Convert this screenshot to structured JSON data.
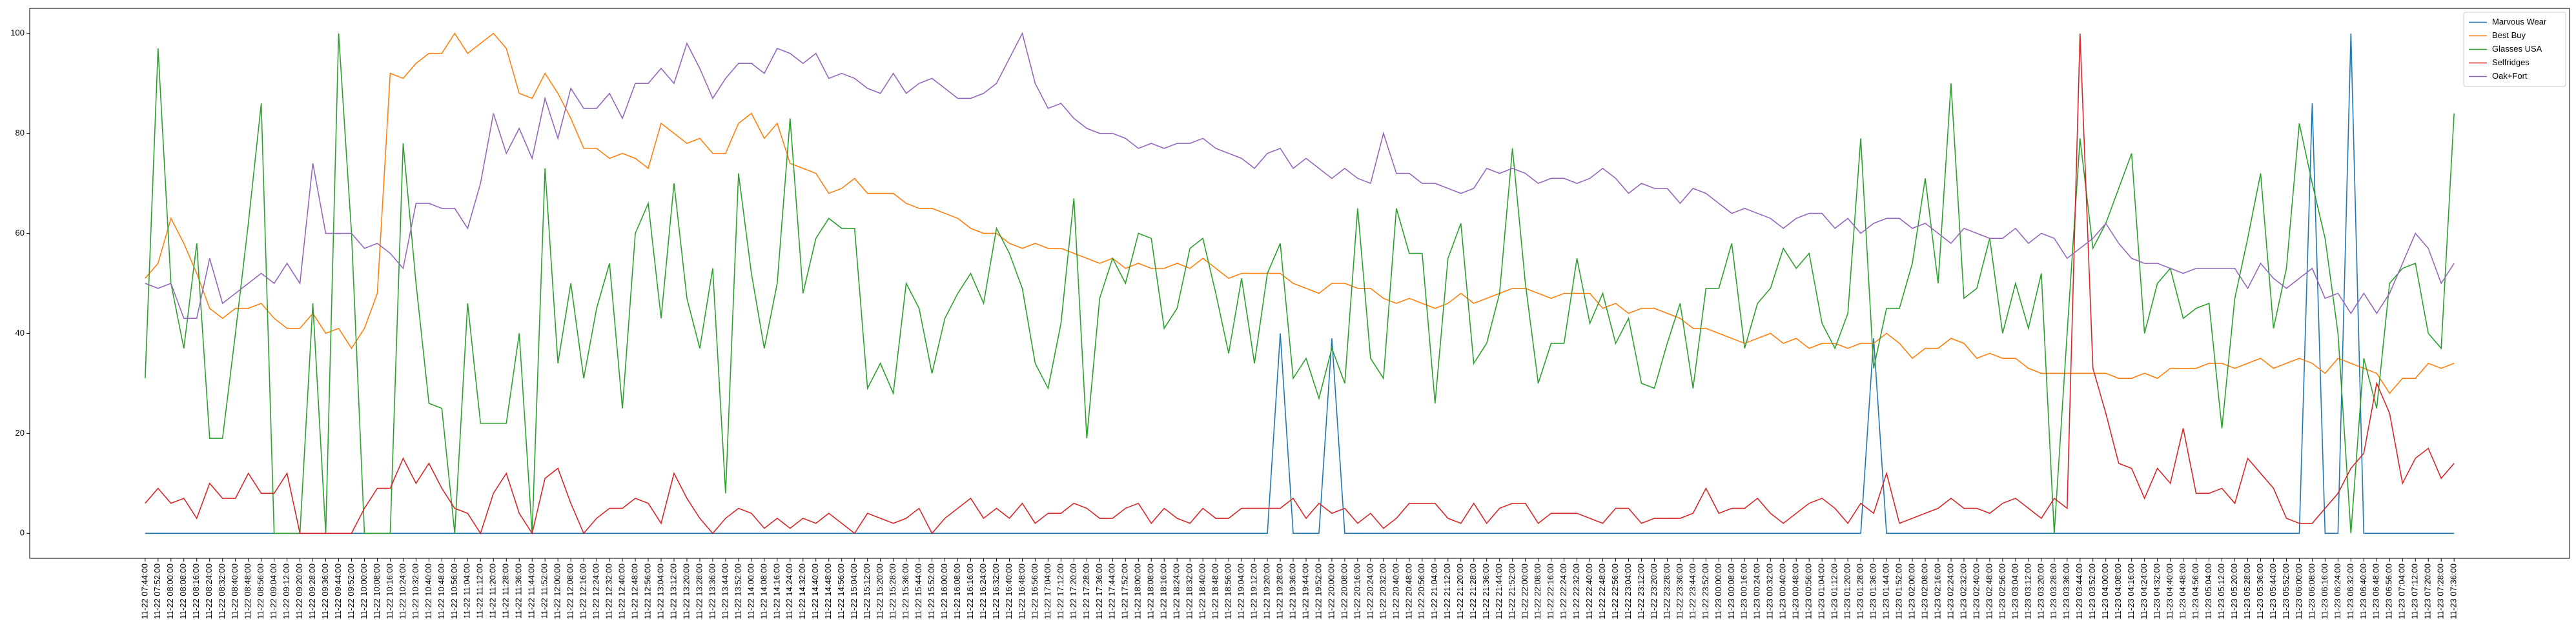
{
  "chart_data": {
    "type": "line",
    "categories": [
      "11-22 07:44:00",
      "11-22 07:52:00",
      "11-22 08:00:00",
      "11-22 08:08:00",
      "11-22 08:16:00",
      "11-22 08:24:00",
      "11-22 08:32:00",
      "11-22 08:40:00",
      "11-22 08:48:00",
      "11-22 08:56:00",
      "11-22 09:04:00",
      "11-22 09:12:00",
      "11-22 09:20:00",
      "11-22 09:28:00",
      "11-22 09:36:00",
      "11-22 09:44:00",
      "11-22 09:52:00",
      "11-22 10:00:00",
      "11-22 10:08:00",
      "11-22 10:16:00",
      "11-22 10:24:00",
      "11-22 10:32:00",
      "11-22 10:40:00",
      "11-22 10:48:00",
      "11-22 10:56:00",
      "11-22 11:04:00",
      "11-22 11:12:00",
      "11-22 11:20:00",
      "11-22 11:28:00",
      "11-22 11:36:00",
      "11-22 11:44:00",
      "11-22 11:52:00",
      "11-22 12:00:00",
      "11-22 12:08:00",
      "11-22 12:16:00",
      "11-22 12:24:00",
      "11-22 12:32:00",
      "11-22 12:40:00",
      "11-22 12:48:00",
      "11-22 12:56:00",
      "11-22 13:04:00",
      "11-22 13:12:00",
      "11-22 13:20:00",
      "11-22 13:28:00",
      "11-22 13:36:00",
      "11-22 13:44:00",
      "11-22 13:52:00",
      "11-22 14:00:00",
      "11-22 14:08:00",
      "11-22 14:16:00",
      "11-22 14:24:00",
      "11-22 14:32:00",
      "11-22 14:40:00",
      "11-22 14:48:00",
      "11-22 14:56:00",
      "11-22 15:04:00",
      "11-22 15:12:00",
      "11-22 15:20:00",
      "11-22 15:28:00",
      "11-22 15:36:00",
      "11-22 15:44:00",
      "11-22 15:52:00",
      "11-22 16:00:00",
      "11-22 16:08:00",
      "11-22 16:16:00",
      "11-22 16:24:00",
      "11-22 16:32:00",
      "11-22 16:40:00",
      "11-22 16:48:00",
      "11-22 16:56:00",
      "11-22 17:04:00",
      "11-22 17:12:00",
      "11-22 17:20:00",
      "11-22 17:28:00",
      "11-22 17:36:00",
      "11-22 17:44:00",
      "11-22 17:52:00",
      "11-22 18:00:00",
      "11-22 18:08:00",
      "11-22 18:16:00",
      "11-22 18:24:00",
      "11-22 18:32:00",
      "11-22 18:40:00",
      "11-22 18:48:00",
      "11-22 18:56:00",
      "11-22 19:04:00",
      "11-22 19:12:00",
      "11-22 19:20:00",
      "11-22 19:28:00",
      "11-22 19:36:00",
      "11-22 19:44:00",
      "11-22 19:52:00",
      "11-22 20:00:00",
      "11-22 20:08:00",
      "11-22 20:16:00",
      "11-22 20:24:00",
      "11-22 20:32:00",
      "11-22 20:40:00",
      "11-22 20:48:00",
      "11-22 20:56:00",
      "11-22 21:04:00",
      "11-22 21:12:00",
      "11-22 21:20:00",
      "11-22 21:28:00",
      "11-22 21:36:00",
      "11-22 21:44:00",
      "11-22 21:52:00",
      "11-22 22:00:00",
      "11-22 22:08:00",
      "11-22 22:16:00",
      "11-22 22:24:00",
      "11-22 22:32:00",
      "11-22 22:40:00",
      "11-22 22:48:00",
      "11-22 22:56:00",
      "11-22 23:04:00",
      "11-22 23:12:00",
      "11-22 23:20:00",
      "11-22 23:28:00",
      "11-22 23:36:00",
      "11-22 23:44:00",
      "11-22 23:52:00",
      "11-23 00:00:00",
      "11-23 00:08:00",
      "11-23 00:16:00",
      "11-23 00:24:00",
      "11-23 00:32:00",
      "11-23 00:40:00",
      "11-23 00:48:00",
      "11-23 00:56:00",
      "11-23 01:04:00",
      "11-23 01:12:00",
      "11-23 01:20:00",
      "11-23 01:28:00",
      "11-23 01:36:00",
      "11-23 01:44:00",
      "11-23 01:52:00",
      "11-23 02:00:00",
      "11-23 02:08:00",
      "11-23 02:16:00",
      "11-23 02:24:00",
      "11-23 02:32:00",
      "11-23 02:40:00",
      "11-23 02:48:00",
      "11-23 02:56:00",
      "11-23 03:04:00",
      "11-23 03:12:00",
      "11-23 03:20:00",
      "11-23 03:28:00",
      "11-23 03:36:00",
      "11-23 03:44:00",
      "11-23 03:52:00",
      "11-23 04:00:00",
      "11-23 04:08:00",
      "11-23 04:16:00",
      "11-23 04:24:00",
      "11-23 04:32:00",
      "11-23 04:40:00",
      "11-23 04:48:00",
      "11-23 04:56:00",
      "11-23 05:04:00",
      "11-23 05:12:00",
      "11-23 05:20:00",
      "11-23 05:28:00",
      "11-23 05:36:00",
      "11-23 05:44:00",
      "11-23 05:52:00",
      "11-23 06:00:00",
      "11-23 06:08:00",
      "11-23 06:16:00",
      "11-23 06:24:00",
      "11-23 06:32:00",
      "11-23 06:40:00",
      "11-23 06:48:00",
      "11-23 06:56:00",
      "11-23 07:04:00",
      "11-23 07:12:00",
      "11-23 07:20:00",
      "11-23 07:28:00",
      "11-23 07:36:00"
    ],
    "series": [
      {
        "name": "Marvous Wear",
        "color": "#1f77b4",
        "values": [
          0,
          0,
          0,
          0,
          0,
          0,
          0,
          0,
          0,
          0,
          0,
          0,
          0,
          0,
          0,
          0,
          0,
          0,
          0,
          0,
          0,
          0,
          0,
          0,
          0,
          0,
          0,
          0,
          0,
          0,
          0,
          0,
          0,
          0,
          0,
          0,
          0,
          0,
          0,
          0,
          0,
          0,
          0,
          0,
          0,
          0,
          0,
          0,
          0,
          0,
          0,
          0,
          0,
          0,
          0,
          0,
          0,
          0,
          0,
          0,
          0,
          0,
          0,
          0,
          0,
          0,
          0,
          0,
          0,
          0,
          0,
          0,
          0,
          0,
          0,
          0,
          0,
          0,
          0,
          0,
          0,
          0,
          0,
          0,
          0,
          0,
          0,
          0,
          40,
          0,
          0,
          0,
          39,
          0,
          0,
          0,
          0,
          0,
          0,
          0,
          0,
          0,
          0,
          0,
          0,
          0,
          0,
          0,
          0,
          0,
          0,
          0,
          0,
          0,
          0,
          0,
          0,
          0,
          0,
          0,
          0,
          0,
          0,
          0,
          0,
          0,
          0,
          0,
          0,
          0,
          0,
          0,
          0,
          0,
          39,
          0,
          0,
          0,
          0,
          0,
          0,
          0,
          0,
          0,
          0,
          0,
          0,
          0,
          0,
          0,
          0,
          0,
          0,
          0,
          0,
          0,
          0,
          0,
          0,
          0,
          0,
          0,
          0,
          0,
          0,
          0,
          0,
          0,
          86,
          0,
          0,
          100,
          0,
          0,
          0,
          0,
          0,
          0,
          0,
          0
        ]
      },
      {
        "name": "Best Buy",
        "color": "#ff7f0e",
        "values": [
          51,
          54,
          63,
          58,
          52,
          45,
          43,
          45,
          45,
          46,
          43,
          41,
          41,
          44,
          40,
          41,
          37,
          41,
          48,
          92,
          91,
          94,
          96,
          96,
          100,
          96,
          98,
          100,
          97,
          88,
          87,
          92,
          88,
          83,
          77,
          77,
          75,
          76,
          75,
          73,
          82,
          80,
          78,
          79,
          76,
          76,
          82,
          84,
          79,
          82,
          74,
          73,
          72,
          68,
          69,
          71,
          68,
          68,
          68,
          66,
          65,
          65,
          64,
          63,
          61,
          60,
          60,
          58,
          57,
          58,
          57,
          57,
          56,
          55,
          54,
          55,
          53,
          54,
          53,
          53,
          54,
          53,
          55,
          53,
          51,
          52,
          52,
          52,
          52,
          50,
          49,
          48,
          50,
          50,
          49,
          49,
          47,
          46,
          47,
          46,
          45,
          46,
          48,
          46,
          47,
          48,
          49,
          49,
          48,
          47,
          48,
          48,
          48,
          45,
          46,
          44,
          45,
          45,
          44,
          43,
          41,
          41,
          40,
          39,
          38,
          39,
          40,
          38,
          39,
          37,
          38,
          38,
          37,
          38,
          38,
          40,
          38,
          35,
          37,
          37,
          39,
          38,
          35,
          36,
          35,
          35,
          33,
          32,
          32,
          32,
          32,
          32,
          32,
          31,
          31,
          32,
          31,
          33,
          33,
          33,
          34,
          34,
          33,
          34,
          35,
          33,
          34,
          35,
          34,
          32,
          35,
          34,
          33,
          32,
          28,
          31,
          31,
          34,
          33,
          34
        ]
      },
      {
        "name": "Glasses USA",
        "color": "#2ca02c",
        "values": [
          31,
          97,
          50,
          37,
          58,
          19,
          19,
          40,
          62,
          86,
          0,
          0,
          0,
          46,
          0,
          100,
          60,
          0,
          0,
          0,
          78,
          50,
          26,
          25,
          0,
          46,
          22,
          22,
          22,
          40,
          0,
          73,
          34,
          50,
          31,
          45,
          54,
          25,
          60,
          66,
          43,
          70,
          47,
          37,
          53,
          8,
          72,
          52,
          37,
          50,
          83,
          48,
          59,
          63,
          61,
          61,
          29,
          34,
          28,
          50,
          45,
          32,
          43,
          48,
          52,
          46,
          61,
          56,
          49,
          34,
          29,
          42,
          67,
          19,
          47,
          55,
          50,
          60,
          59,
          41,
          45,
          57,
          59,
          48,
          36,
          51,
          34,
          52,
          58,
          31,
          35,
          27,
          37,
          30,
          65,
          35,
          31,
          65,
          56,
          56,
          26,
          55,
          62,
          34,
          38,
          48,
          77,
          50,
          30,
          38,
          38,
          55,
          42,
          48,
          38,
          43,
          30,
          29,
          38,
          46,
          29,
          49,
          49,
          58,
          37,
          46,
          49,
          57,
          53,
          56,
          42,
          37,
          44,
          79,
          33,
          45,
          45,
          54,
          71,
          50,
          90,
          47,
          49,
          59,
          40,
          50,
          41,
          52,
          0,
          40,
          79,
          57,
          62,
          69,
          76,
          40,
          50,
          53,
          43,
          45,
          46,
          21,
          47,
          59,
          72,
          41,
          53,
          82,
          70,
          59,
          40,
          0,
          35,
          25,
          50,
          53,
          54,
          40,
          37,
          84
        ]
      },
      {
        "name": "Selfridges",
        "color": "#d62728",
        "values": [
          6,
          9,
          6,
          7,
          3,
          10,
          7,
          7,
          12,
          8,
          8,
          12,
          0,
          0,
          0,
          0,
          0,
          5,
          9,
          9,
          15,
          10,
          14,
          9,
          5,
          4,
          0,
          8,
          12,
          4,
          0,
          11,
          13,
          6,
          0,
          3,
          5,
          5,
          7,
          6,
          2,
          12,
          7,
          3,
          0,
          3,
          5,
          4,
          1,
          3,
          1,
          3,
          2,
          4,
          2,
          0,
          4,
          3,
          2,
          3,
          5,
          0,
          3,
          5,
          7,
          3,
          5,
          3,
          6,
          2,
          4,
          4,
          6,
          5,
          3,
          3,
          5,
          6,
          2,
          5,
          3,
          2,
          5,
          3,
          3,
          5,
          5,
          5,
          5,
          7,
          3,
          6,
          4,
          5,
          2,
          4,
          1,
          3,
          6,
          6,
          6,
          3,
          2,
          6,
          2,
          5,
          6,
          6,
          2,
          4,
          4,
          4,
          3,
          2,
          5,
          5,
          2,
          3,
          3,
          3,
          4,
          9,
          4,
          5,
          5,
          7,
          4,
          2,
          4,
          6,
          7,
          5,
          2,
          6,
          4,
          12,
          2,
          3,
          4,
          5,
          7,
          5,
          5,
          4,
          6,
          7,
          5,
          3,
          7,
          5,
          100,
          33,
          24,
          14,
          13,
          7,
          13,
          10,
          21,
          8,
          8,
          9,
          6,
          15,
          12,
          9,
          3,
          2,
          2,
          5,
          8,
          13,
          16,
          30,
          24,
          10,
          15,
          17,
          11,
          14
        ]
      },
      {
        "name": "Oak+Fort",
        "color": "#9467bd",
        "values": [
          50,
          49,
          50,
          43,
          43,
          55,
          46,
          48,
          50,
          52,
          50,
          54,
          50,
          74,
          60,
          60,
          60,
          57,
          58,
          56,
          53,
          66,
          66,
          65,
          65,
          61,
          70,
          84,
          76,
          81,
          75,
          87,
          79,
          89,
          85,
          85,
          88,
          83,
          90,
          90,
          93,
          90,
          98,
          93,
          87,
          91,
          94,
          94,
          92,
          97,
          96,
          94,
          96,
          91,
          92,
          91,
          89,
          88,
          92,
          88,
          90,
          91,
          89,
          87,
          87,
          88,
          90,
          95,
          100,
          90,
          85,
          86,
          83,
          81,
          80,
          80,
          79,
          77,
          78,
          77,
          78,
          78,
          79,
          77,
          76,
          75,
          73,
          76,
          77,
          73,
          75,
          73,
          71,
          73,
          71,
          70,
          80,
          72,
          72,
          70,
          70,
          69,
          68,
          69,
          73,
          72,
          73,
          72,
          70,
          71,
          71,
          70,
          71,
          73,
          71,
          68,
          70,
          69,
          69,
          66,
          69,
          68,
          66,
          64,
          65,
          64,
          63,
          61,
          63,
          64,
          64,
          61,
          63,
          60,
          62,
          63,
          63,
          61,
          62,
          60,
          58,
          61,
          60,
          59,
          59,
          61,
          58,
          60,
          59,
          55,
          57,
          59,
          62,
          58,
          55,
          54,
          54,
          53,
          52,
          53,
          53,
          53,
          53,
          49,
          54,
          51,
          49,
          51,
          53,
          47,
          48,
          44,
          48,
          44,
          48,
          54,
          60,
          57,
          50,
          54
        ]
      }
    ],
    "ylim": [
      -5,
      105
    ],
    "yticks": [
      0,
      20,
      40,
      60,
      80,
      100
    ],
    "grid": false,
    "legend": "upper right"
  }
}
